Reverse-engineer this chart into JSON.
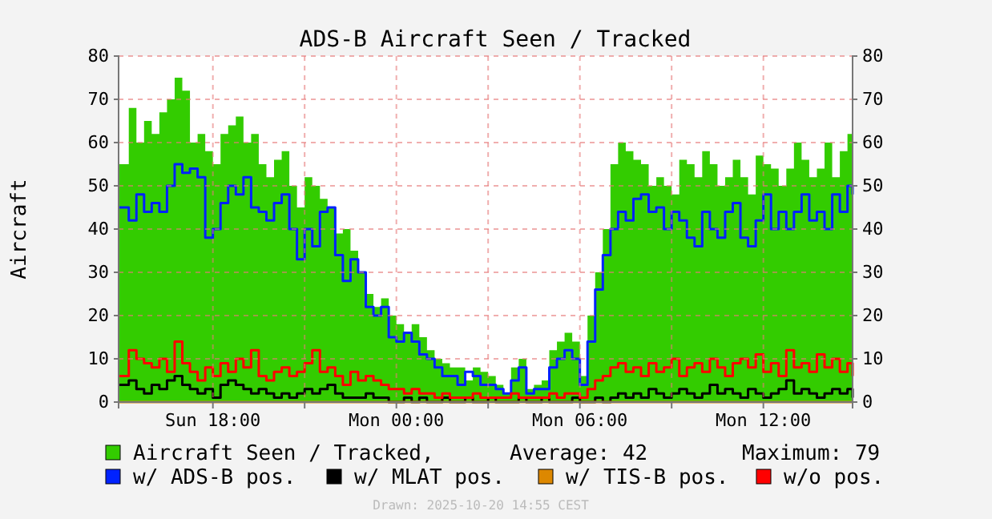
{
  "chart_data": {
    "type": "area",
    "title": "ADS-B Aircraft Seen / Tracked",
    "ylabel": "Aircraft",
    "x": [
      "2025-10-19T14:55",
      "2025-10-19T15:15",
      "2025-10-19T15:30",
      "2025-10-19T15:45",
      "2025-10-19T16:00",
      "2025-10-19T16:15",
      "2025-10-19T16:30",
      "2025-10-19T16:45",
      "2025-10-19T17:00",
      "2025-10-19T17:15",
      "2025-10-19T17:30",
      "2025-10-19T17:45",
      "2025-10-19T18:00",
      "2025-10-19T18:15",
      "2025-10-19T18:30",
      "2025-10-19T18:45",
      "2025-10-19T19:00",
      "2025-10-19T19:15",
      "2025-10-19T19:30",
      "2025-10-19T19:45",
      "2025-10-19T20:00",
      "2025-10-19T20:15",
      "2025-10-19T20:30",
      "2025-10-19T20:45",
      "2025-10-19T21:00",
      "2025-10-19T21:15",
      "2025-10-19T21:30",
      "2025-10-19T21:45",
      "2025-10-19T22:00",
      "2025-10-19T22:15",
      "2025-10-19T22:30",
      "2025-10-19T22:45",
      "2025-10-19T23:00",
      "2025-10-19T23:15",
      "2025-10-19T23:30",
      "2025-10-19T23:45",
      "2025-10-20T00:00",
      "2025-10-20T00:15",
      "2025-10-20T00:30",
      "2025-10-20T00:45",
      "2025-10-20T01:00",
      "2025-10-20T01:15",
      "2025-10-20T01:30",
      "2025-10-20T01:45",
      "2025-10-20T02:00",
      "2025-10-20T02:15",
      "2025-10-20T02:30",
      "2025-10-20T02:45",
      "2025-10-20T03:00",
      "2025-10-20T03:15",
      "2025-10-20T03:30",
      "2025-10-20T03:45",
      "2025-10-20T04:00",
      "2025-10-20T04:15",
      "2025-10-20T04:30",
      "2025-10-20T04:45",
      "2025-10-20T05:00",
      "2025-10-20T05:15",
      "2025-10-20T05:30",
      "2025-10-20T05:45",
      "2025-10-20T06:00",
      "2025-10-20T06:15",
      "2025-10-20T06:30",
      "2025-10-20T06:45",
      "2025-10-20T07:00",
      "2025-10-20T07:15",
      "2025-10-20T07:30",
      "2025-10-20T07:45",
      "2025-10-20T08:00",
      "2025-10-20T08:15",
      "2025-10-20T08:30",
      "2025-10-20T08:45",
      "2025-10-20T09:00",
      "2025-10-20T09:15",
      "2025-10-20T09:30",
      "2025-10-20T09:45",
      "2025-10-20T10:00",
      "2025-10-20T10:15",
      "2025-10-20T10:30",
      "2025-10-20T10:45",
      "2025-10-20T11:00",
      "2025-10-20T11:15",
      "2025-10-20T11:30",
      "2025-10-20T11:45",
      "2025-10-20T12:00",
      "2025-10-20T12:15",
      "2025-10-20T12:30",
      "2025-10-20T12:45",
      "2025-10-20T13:00",
      "2025-10-20T13:15",
      "2025-10-20T13:30",
      "2025-10-20T13:45",
      "2025-10-20T14:00",
      "2025-10-20T14:15",
      "2025-10-20T14:30",
      "2025-10-20T14:45",
      "2025-10-20T14:55"
    ],
    "series": [
      {
        "name": "Aircraft Seen / Tracked,",
        "color": "#33cc00",
        "values": [
          55,
          68,
          60,
          65,
          62,
          67,
          70,
          75,
          72,
          60,
          62,
          58,
          55,
          62,
          64,
          66,
          60,
          62,
          55,
          52,
          56,
          58,
          50,
          45,
          52,
          50,
          47,
          45,
          39,
          40,
          35,
          30,
          25,
          22,
          24,
          20,
          18,
          16,
          18,
          15,
          12,
          10,
          9,
          8,
          8,
          5,
          8,
          7,
          6,
          4,
          2,
          8,
          10,
          3,
          4,
          5,
          12,
          14,
          16,
          14,
          6,
          20,
          30,
          40,
          55,
          60,
          58,
          56,
          55,
          50,
          52,
          50,
          48,
          56,
          55,
          52,
          58,
          55,
          50,
          52,
          56,
          52,
          48,
          57,
          55,
          54,
          50,
          54,
          60,
          56,
          52,
          54,
          60,
          52,
          58,
          62,
          62
        ]
      },
      {
        "name": "w/ ADS-B pos.",
        "type": "step",
        "color": "#0022ff",
        "values": [
          45,
          42,
          48,
          44,
          46,
          44,
          50,
          55,
          53,
          54,
          52,
          38,
          40,
          46,
          50,
          48,
          52,
          45,
          44,
          42,
          46,
          48,
          40,
          33,
          40,
          36,
          44,
          45,
          34,
          28,
          33,
          30,
          22,
          20,
          22,
          15,
          14,
          16,
          14,
          11,
          10,
          8,
          6,
          6,
          4,
          7,
          6,
          4,
          4,
          3,
          2,
          5,
          8,
          2,
          3,
          3,
          8,
          10,
          12,
          10,
          4,
          14,
          26,
          34,
          40,
          44,
          42,
          47,
          48,
          44,
          45,
          40,
          44,
          42,
          38,
          36,
          44,
          40,
          38,
          44,
          46,
          38,
          36,
          42,
          48,
          40,
          44,
          40,
          44,
          48,
          42,
          44,
          40,
          48,
          44,
          50,
          48
        ]
      },
      {
        "name": "w/ MLAT pos.",
        "type": "step",
        "color": "#000000",
        "values": [
          4,
          5,
          3,
          2,
          4,
          3,
          5,
          6,
          4,
          3,
          2,
          3,
          1,
          4,
          5,
          4,
          3,
          2,
          3,
          2,
          1,
          2,
          1,
          2,
          3,
          2,
          3,
          4,
          2,
          1,
          1,
          1,
          2,
          1,
          1,
          0,
          0,
          1,
          0,
          1,
          0,
          0,
          1,
          0,
          0,
          1,
          0,
          0,
          1,
          0,
          0,
          0,
          1,
          0,
          0,
          1,
          0,
          0,
          0,
          1,
          0,
          0,
          1,
          0,
          1,
          2,
          1,
          2,
          1,
          3,
          2,
          1,
          2,
          3,
          2,
          1,
          2,
          4,
          2,
          3,
          2,
          1,
          3,
          2,
          1,
          2,
          3,
          5,
          2,
          3,
          2,
          1,
          2,
          3,
          2,
          3,
          1
        ]
      },
      {
        "name": "w/ TIS-B pos.",
        "type": "step",
        "color": "#dd8800",
        "values": [
          0,
          0,
          0,
          0,
          0,
          0,
          0,
          0,
          0,
          0,
          0,
          0,
          0,
          0,
          0,
          0,
          0,
          0,
          0,
          0,
          0,
          0,
          0,
          0,
          0,
          0,
          0,
          0,
          0,
          0,
          0,
          0,
          0,
          0,
          0,
          0,
          0,
          0,
          0,
          0,
          0,
          0,
          0,
          0,
          0,
          0,
          0,
          0,
          0,
          0,
          0,
          0,
          0,
          0,
          0,
          0,
          0,
          0,
          0,
          0,
          0,
          0,
          0,
          0,
          0,
          0,
          0,
          0,
          0,
          0,
          0,
          0,
          0,
          0,
          0,
          0,
          0,
          0,
          0,
          0,
          0,
          0,
          0,
          0,
          0,
          0,
          0,
          0,
          0,
          0,
          0,
          0,
          0,
          0,
          0,
          0,
          0
        ]
      },
      {
        "name": "w/o pos.",
        "type": "step",
        "color": "#ff0000",
        "values": [
          6,
          12,
          10,
          9,
          8,
          10,
          7,
          14,
          9,
          7,
          5,
          8,
          6,
          9,
          7,
          10,
          8,
          12,
          6,
          5,
          7,
          8,
          6,
          7,
          9,
          12,
          7,
          8,
          6,
          4,
          7,
          5,
          6,
          5,
          4,
          3,
          3,
          2,
          3,
          2,
          2,
          1,
          2,
          1,
          1,
          1,
          2,
          1,
          1,
          1,
          1,
          2,
          1,
          1,
          1,
          1,
          2,
          1,
          2,
          2,
          1,
          3,
          5,
          6,
          8,
          9,
          7,
          8,
          6,
          9,
          7,
          8,
          10,
          6,
          8,
          9,
          7,
          10,
          8,
          6,
          9,
          10,
          8,
          11,
          7,
          9,
          6,
          12,
          8,
          9,
          7,
          11,
          8,
          10,
          7,
          9,
          6
        ]
      }
    ],
    "xlim": [
      "2025-10-19T14:55",
      "2025-10-20T14:55"
    ],
    "xticks": [
      {
        "value": "2025-10-19T18:00",
        "label": "Sun 18:00"
      },
      {
        "value": "2025-10-19T21:00",
        "label": null
      },
      {
        "value": "2025-10-20T00:00",
        "label": "Mon 00:00"
      },
      {
        "value": "2025-10-20T03:00",
        "label": null
      },
      {
        "value": "2025-10-20T06:00",
        "label": "Mon 06:00"
      },
      {
        "value": "2025-10-20T09:00",
        "label": null
      },
      {
        "value": "2025-10-20T12:00",
        "label": "Mon 12:00"
      }
    ],
    "ylim": [
      0,
      80
    ],
    "yticks": [
      0,
      10,
      20,
      30,
      40,
      50,
      60,
      70,
      80
    ],
    "y2lim": [
      0,
      80
    ],
    "y2ticks": [
      0,
      10,
      20,
      30,
      40,
      50,
      60,
      70,
      80
    ],
    "grid": true,
    "legend": "bottom",
    "annotations": [
      "Average: 42",
      "Maximum: 79",
      "Drawn: 2025-10-20 14:55 CEST"
    ]
  }
}
